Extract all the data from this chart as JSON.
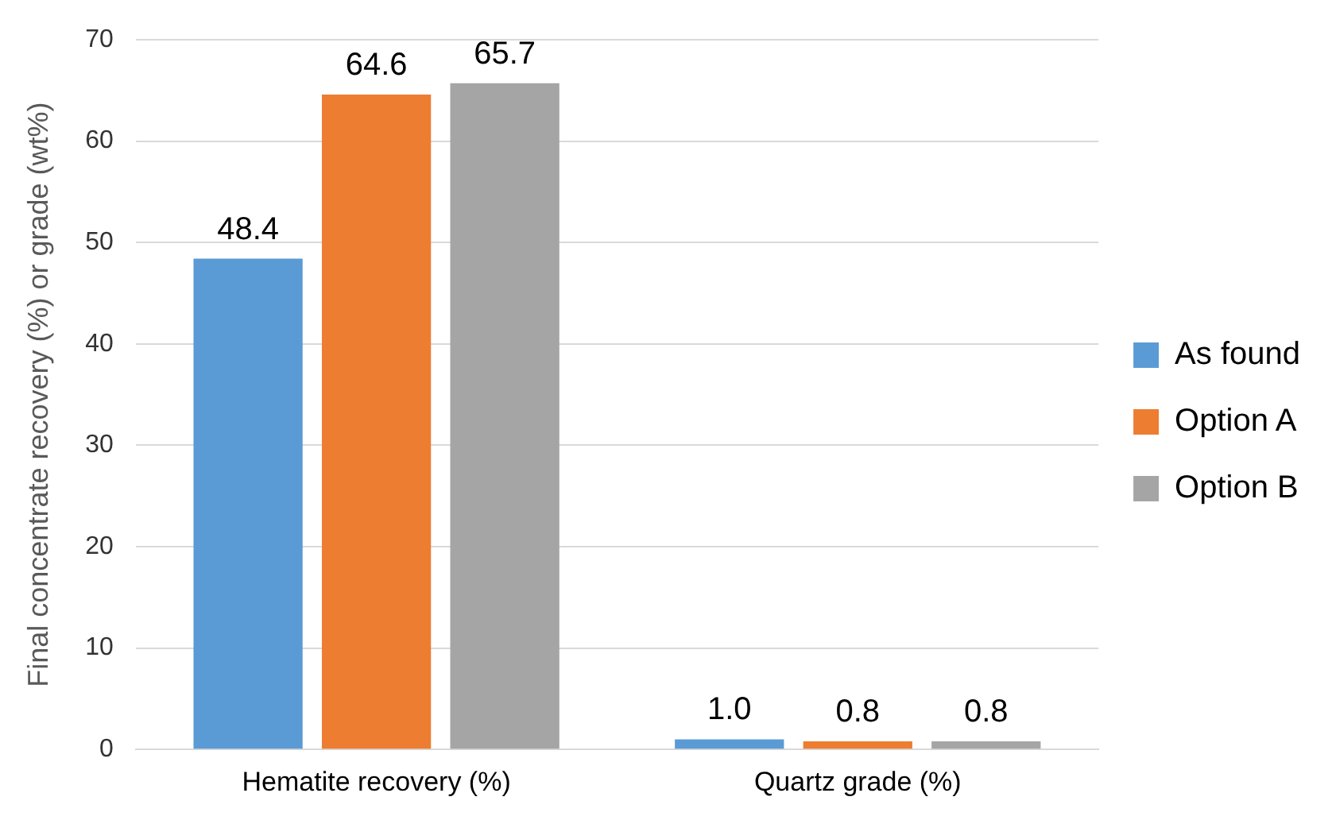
{
  "chart_data": {
    "type": "bar",
    "ylabel": "Final concentrate recovery (%) or grade (wt%)",
    "categories": [
      "Hematite recovery (%)",
      "Quartz grade (%)"
    ],
    "series": [
      {
        "name": "As found",
        "color": "#5b9bd5",
        "values": [
          48.4,
          1.0
        ],
        "value_labels": [
          "48.4",
          "1.0"
        ]
      },
      {
        "name": "Option A",
        "color": "#ed7d31",
        "values": [
          64.6,
          0.8
        ],
        "value_labels": [
          "64.6",
          "0.8"
        ]
      },
      {
        "name": "Option B",
        "color": "#a5a5a5",
        "values": [
          65.7,
          0.8
        ],
        "value_labels": [
          "65.7",
          "0.8"
        ]
      }
    ],
    "ylim": [
      0,
      70
    ],
    "yticks": [
      0,
      10,
      20,
      30,
      40,
      50,
      60,
      70
    ],
    "grid": "y",
    "legend": "right"
  }
}
